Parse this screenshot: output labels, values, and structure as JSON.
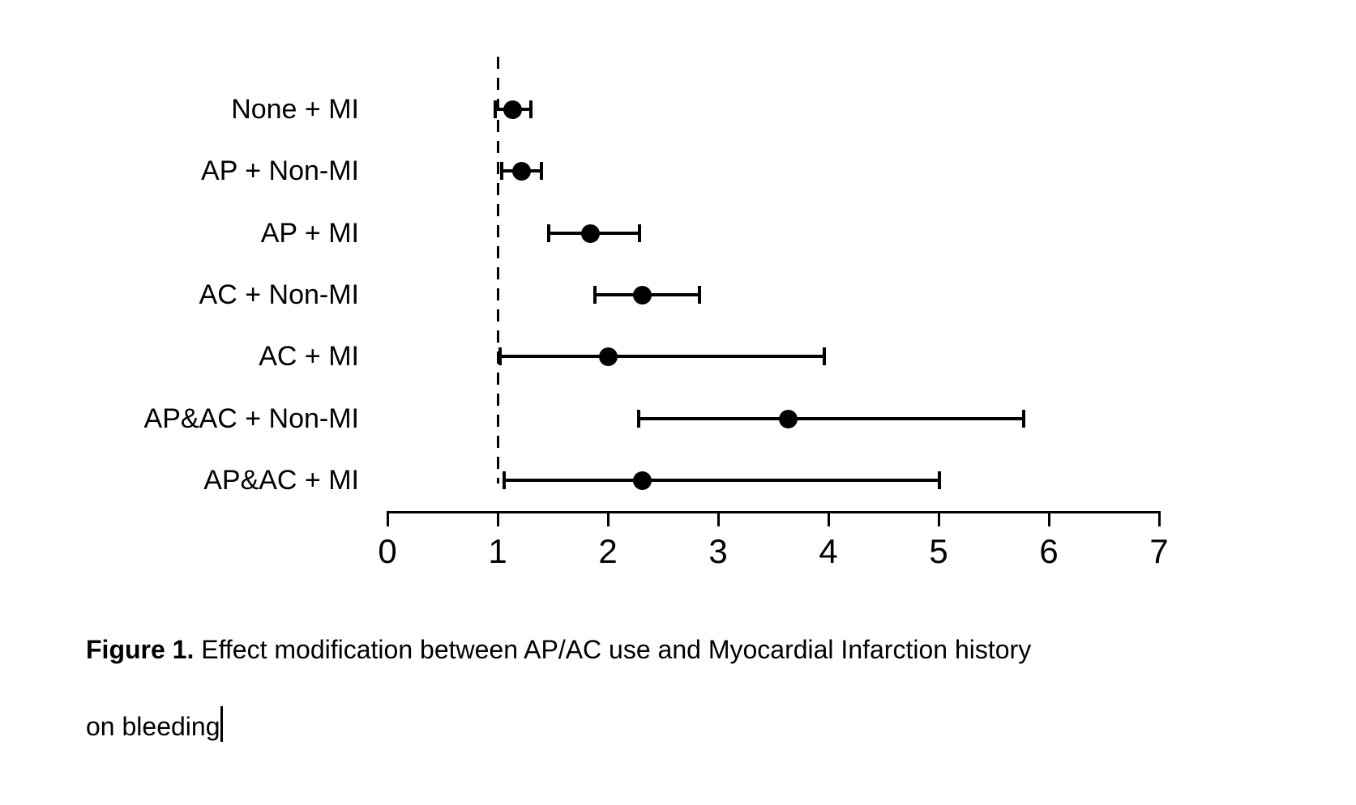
{
  "page": {
    "background": "#ffffff",
    "foreground": "#000000"
  },
  "caption": {
    "label": "Figure 1.",
    "line1_rest": " Effect modification between AP/AC use and Myocardial Infarction history",
    "line2": "on bleeding"
  },
  "chart_data": {
    "type": "scatter",
    "variant": "forest-plot",
    "title": "",
    "xlabel": "",
    "ylabel": "",
    "xlim": [
      0,
      7
    ],
    "x_ticks": [
      "0",
      "1",
      "2",
      "3",
      "4",
      "5",
      "6",
      "7"
    ],
    "grid": false,
    "legend": "none",
    "marker_color": "#000000",
    "reference_line": {
      "x": 1,
      "style": "dashed"
    },
    "categories": [
      "None + MI",
      "AP + Non-MI",
      "AP + MI",
      "AC + Non-MI",
      "AC + MI",
      "AP&AC + Non-MI",
      "AP&AC + MI"
    ],
    "points": [
      {
        "category": "None + MI",
        "estimate": 1.13,
        "ci_low": 0.98,
        "ci_high": 1.3
      },
      {
        "category": "AP + Non-MI",
        "estimate": 1.21,
        "ci_low": 1.04,
        "ci_high": 1.4
      },
      {
        "category": "AP + MI",
        "estimate": 1.84,
        "ci_low": 1.46,
        "ci_high": 2.29
      },
      {
        "category": "AC + Non-MI",
        "estimate": 2.31,
        "ci_low": 1.88,
        "ci_high": 2.83
      },
      {
        "category": "AC + MI",
        "estimate": 2.0,
        "ci_low": 1.02,
        "ci_high": 3.96
      },
      {
        "category": "AP&AC + Non-MI",
        "estimate": 3.63,
        "ci_low": 2.28,
        "ci_high": 5.77
      },
      {
        "category": "AP&AC + MI",
        "estimate": 2.31,
        "ci_low": 1.06,
        "ci_high": 5.01
      }
    ]
  }
}
